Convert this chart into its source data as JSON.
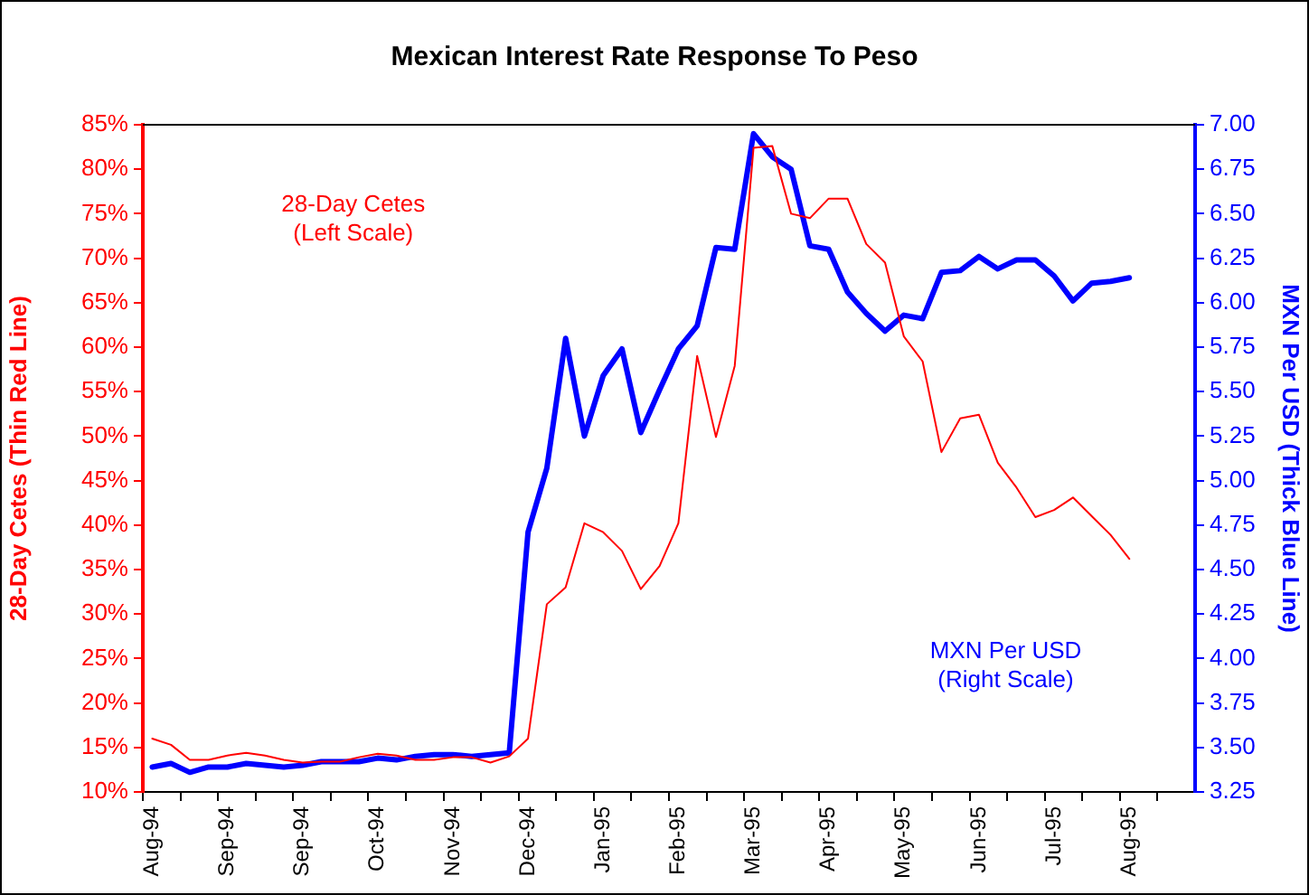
{
  "chart_data": {
    "type": "line",
    "title": "Mexican Interest Rate Response To Peso",
    "ylabel": "28-Day Cetes (Thin Red Line)",
    "y2label": "MXN Per USD (Thick Blue Line)",
    "categories": [
      "Aug-94",
      null,
      null,
      null,
      "Sep-94",
      null,
      null,
      null,
      "Sep-94",
      null,
      null,
      null,
      "Oct-94",
      null,
      null,
      null,
      "Nov-94",
      null,
      null,
      null,
      "Dec-94",
      null,
      null,
      null,
      "Jan-95",
      null,
      null,
      null,
      "Feb-95",
      null,
      null,
      null,
      "Mar-95",
      null,
      null,
      null,
      "Apr-95",
      null,
      null,
      null,
      "May-95",
      null,
      null,
      null,
      "Jun-95",
      null,
      null,
      null,
      "Jul-95",
      null,
      null,
      null,
      "Aug-95",
      null,
      null,
      null
    ],
    "series": [
      {
        "color": "#ff0000",
        "values": [
          16.0,
          15.3,
          13.6,
          13.6,
          14.1,
          14.4,
          14.1,
          13.6,
          13.3,
          13.4,
          13.4,
          13.9,
          14.3,
          14.1,
          13.6,
          13.6,
          13.9,
          13.9,
          13.3,
          14.0,
          16.0,
          31.1,
          33.0,
          40.2,
          39.2,
          37.1,
          32.8,
          35.4,
          40.2,
          59.0,
          49.9,
          57.9,
          82.4,
          82.6,
          75.0,
          74.5,
          76.7,
          76.7,
          71.6,
          69.5,
          61.2,
          58.4,
          48.2,
          52.0,
          52.4,
          47.0,
          44.2,
          40.9,
          41.7,
          43.1,
          41.0,
          38.9,
          36.2,
          null,
          null,
          null
        ]
      },
      {
        "color": "#0000ff",
        "axis": "y2",
        "values": [
          3.39,
          3.41,
          3.36,
          3.39,
          3.39,
          3.41,
          3.4,
          3.39,
          3.4,
          3.42,
          3.42,
          3.42,
          3.44,
          3.43,
          3.45,
          3.46,
          3.46,
          3.45,
          3.46,
          3.47,
          4.71,
          5.07,
          5.8,
          5.25,
          5.59,
          5.74,
          5.27,
          5.51,
          5.74,
          5.87,
          6.31,
          6.3,
          6.95,
          6.82,
          6.75,
          6.32,
          6.3,
          6.06,
          5.94,
          5.84,
          5.93,
          5.91,
          6.17,
          6.18,
          6.26,
          6.19,
          6.24,
          6.24,
          6.15,
          6.01,
          6.11,
          6.12,
          6.14,
          null,
          null,
          null
        ]
      }
    ],
    "ylim": [
      10,
      85
    ],
    "yticks": [
      {
        "value": 10,
        "label": "10%"
      },
      {
        "value": 15,
        "label": "15%"
      },
      {
        "value": 20,
        "label": "20%"
      },
      {
        "value": 25,
        "label": "25%"
      },
      {
        "value": 30,
        "label": "30%"
      },
      {
        "value": 35,
        "label": "35%"
      },
      {
        "value": 40,
        "label": "40%"
      },
      {
        "value": 45,
        "label": "45%"
      },
      {
        "value": 50,
        "label": "50%"
      },
      {
        "value": 55,
        "label": "55%"
      },
      {
        "value": 60,
        "label": "60%"
      },
      {
        "value": 65,
        "label": "65%"
      },
      {
        "value": 70,
        "label": "70%"
      },
      {
        "value": 75,
        "label": "75%"
      },
      {
        "value": 80,
        "label": "80%"
      },
      {
        "value": 85,
        "label": "85%"
      }
    ],
    "y2lim": [
      3.25,
      7
    ],
    "y2ticks": [
      {
        "value": 3.25,
        "label": "3.25"
      },
      {
        "value": 3.5,
        "label": "3.50"
      },
      {
        "value": 3.75,
        "label": "3.75"
      },
      {
        "value": 4,
        "label": "4.00"
      },
      {
        "value": 4.25,
        "label": "4.25"
      },
      {
        "value": 4.5,
        "label": "4.50"
      },
      {
        "value": 4.75,
        "label": "4.75"
      },
      {
        "value": 5,
        "label": "5.00"
      },
      {
        "value": 5.25,
        "label": "5.25"
      },
      {
        "value": 5.5,
        "label": "5.50"
      },
      {
        "value": 5.75,
        "label": "5.75"
      },
      {
        "value": 6,
        "label": "6.00"
      },
      {
        "value": 6.25,
        "label": "6.25"
      },
      {
        "value": 6.5,
        "label": "6.50"
      },
      {
        "value": 6.75,
        "label": "6.75"
      },
      {
        "value": 7,
        "label": "7.00"
      }
    ],
    "annotations": [
      "28-Day Cetes\n(Left Scale)",
      "MXN Per USD\n(Right Scale)"
    ],
    "grid": false,
    "legend": false,
    "marker": "none",
    "line_style": "solid"
  }
}
